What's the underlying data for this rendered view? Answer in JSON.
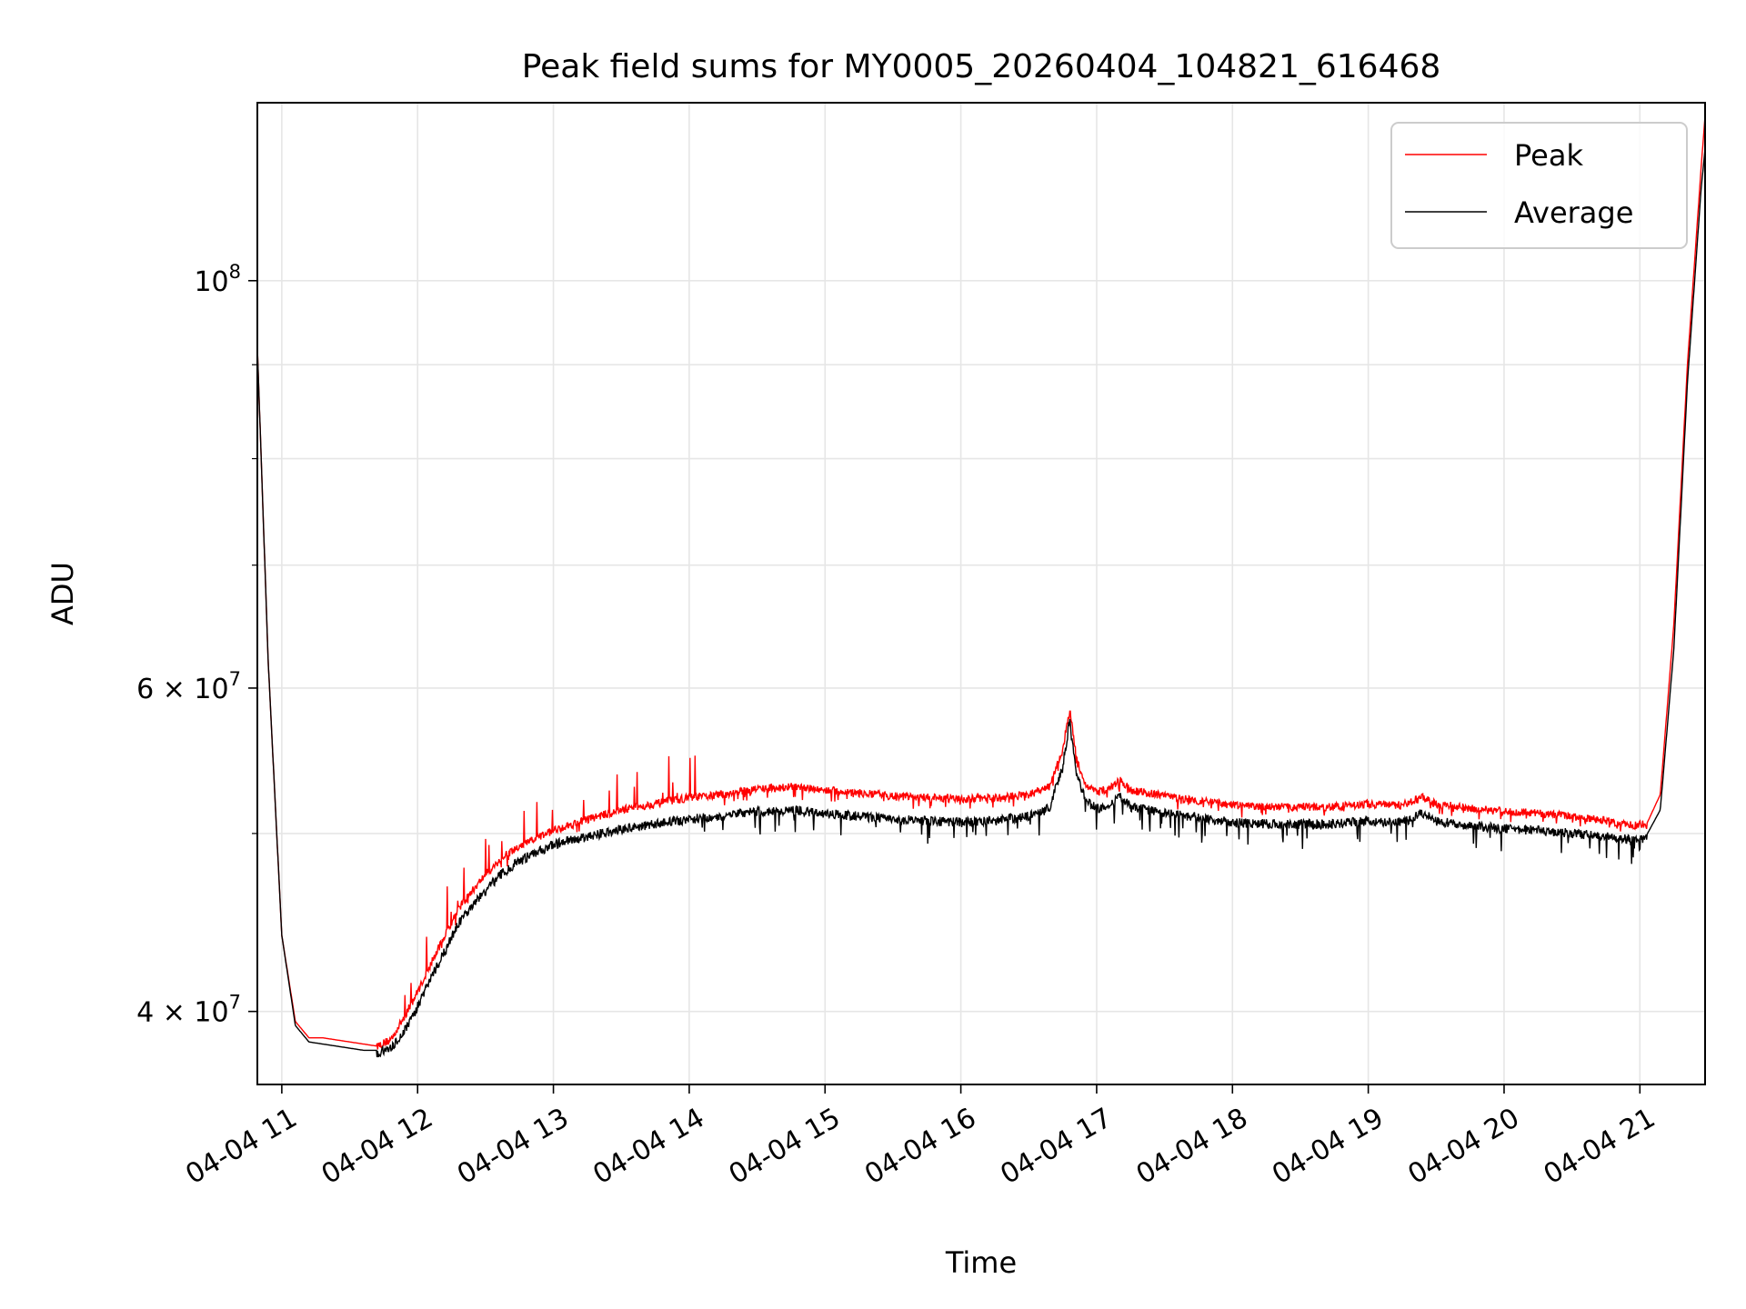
{
  "chart_data": {
    "type": "line",
    "title": "Peak field sums for MY0005_20260404_104821_616468",
    "xlabel": "Time",
    "ylabel": "ADU",
    "x_unit": "hours",
    "xlim": [
      10.82,
      21.48
    ],
    "ylim": [
      36500000,
      125000000
    ],
    "yscale": "log",
    "grid": true,
    "legend_position": "upper right",
    "x_ticks": [
      {
        "value": 11,
        "label": "04-04 11"
      },
      {
        "value": 12,
        "label": "04-04 12"
      },
      {
        "value": 13,
        "label": "04-04 13"
      },
      {
        "value": 14,
        "label": "04-04 14"
      },
      {
        "value": 15,
        "label": "04-04 15"
      },
      {
        "value": 16,
        "label": "04-04 16"
      },
      {
        "value": 17,
        "label": "04-04 17"
      },
      {
        "value": 18,
        "label": "04-04 18"
      },
      {
        "value": 19,
        "label": "04-04 19"
      },
      {
        "value": 20,
        "label": "04-04 20"
      },
      {
        "value": 21,
        "label": "04-04 21"
      }
    ],
    "y_major_ticks": [
      {
        "value": 100000000,
        "base": "10",
        "exp": "8"
      },
      {
        "value": 60000000,
        "base": "6 × 10",
        "exp": "7"
      },
      {
        "value": 40000000,
        "base": "4 × 10",
        "exp": "7"
      }
    ],
    "y_minor_ticks": [
      50000000,
      70000000,
      80000000,
      90000000
    ],
    "series": [
      {
        "name": "Peak",
        "color": "#ff0000",
        "x": [
          10.82,
          10.9,
          11.0,
          11.1,
          11.2,
          11.3,
          11.4,
          11.5,
          11.6,
          11.7,
          11.8,
          11.9,
          12.0,
          12.1,
          12.2,
          12.3,
          12.4,
          12.5,
          12.6,
          12.7,
          12.8,
          12.9,
          13.0,
          13.25,
          13.5,
          13.75,
          14.0,
          14.25,
          14.5,
          14.75,
          15.0,
          15.25,
          15.5,
          15.75,
          16.0,
          16.25,
          16.5,
          16.65,
          16.75,
          16.8,
          16.85,
          16.92,
          17.0,
          17.1,
          17.17,
          17.25,
          17.5,
          17.75,
          18.0,
          18.25,
          18.5,
          18.75,
          19.0,
          19.25,
          19.4,
          19.5,
          19.75,
          20.0,
          20.25,
          20.5,
          20.75,
          20.95,
          21.05,
          21.15,
          21.25,
          21.35,
          21.45,
          21.48
        ],
        "values": [
          92000000,
          62000000,
          44000000,
          39500000,
          38700000,
          38700000,
          38600000,
          38500000,
          38400000,
          38300000,
          38600000,
          39700000,
          41000000,
          42500000,
          44000000,
          45500000,
          46500000,
          47500000,
          48300000,
          48900000,
          49400000,
          49800000,
          50200000,
          50900000,
          51500000,
          51900000,
          52300000,
          52500000,
          52900000,
          53000000,
          52800000,
          52600000,
          52400000,
          52300000,
          52200000,
          52300000,
          52500000,
          53000000,
          55500000,
          58500000,
          55000000,
          53100000,
          52700000,
          52900000,
          53500000,
          52800000,
          52400000,
          52100000,
          51800000,
          51700000,
          51700000,
          51700000,
          51900000,
          51800000,
          52300000,
          51900000,
          51600000,
          51400000,
          51300000,
          51100000,
          50800000,
          50500000,
          50600000,
          52500000,
          65000000,
          90000000,
          115000000,
          123000000
        ]
      },
      {
        "name": "Average",
        "color": "#000000",
        "x": [
          10.82,
          10.9,
          11.0,
          11.1,
          11.2,
          11.3,
          11.4,
          11.5,
          11.6,
          11.7,
          11.8,
          11.9,
          12.0,
          12.1,
          12.2,
          12.3,
          12.4,
          12.5,
          12.6,
          12.7,
          12.8,
          12.9,
          13.0,
          13.25,
          13.5,
          13.75,
          14.0,
          14.25,
          14.5,
          14.75,
          15.0,
          15.25,
          15.5,
          15.75,
          16.0,
          16.25,
          16.5,
          16.65,
          16.75,
          16.8,
          16.85,
          16.92,
          17.0,
          17.1,
          17.17,
          17.25,
          17.5,
          17.75,
          18.0,
          18.25,
          18.5,
          18.75,
          19.0,
          19.25,
          19.4,
          19.5,
          19.75,
          20.0,
          20.25,
          20.5,
          20.75,
          20.95,
          21.05,
          21.15,
          21.25,
          21.35,
          21.45,
          21.48
        ],
        "values": [
          92000000,
          62000000,
          44000000,
          39300000,
          38500000,
          38400000,
          38300000,
          38200000,
          38100000,
          38100000,
          38300000,
          39200000,
          40400000,
          41900000,
          43300000,
          44800000,
          45800000,
          46700000,
          47600000,
          48200000,
          48700000,
          49100000,
          49500000,
          50000000,
          50500000,
          50800000,
          51100000,
          51300000,
          51600000,
          51700000,
          51500000,
          51300000,
          51100000,
          51000000,
          50900000,
          51000000,
          51300000,
          51800000,
          54500000,
          57800000,
          54200000,
          52300000,
          51800000,
          52000000,
          52700000,
          51900000,
          51500000,
          51200000,
          50900000,
          50800000,
          50800000,
          50800000,
          51000000,
          50900000,
          51500000,
          51000000,
          50700000,
          50500000,
          50400000,
          50200000,
          50000000,
          49800000,
          49900000,
          51500000,
          63000000,
          88000000,
          112000000,
          118000000
        ]
      }
    ]
  }
}
